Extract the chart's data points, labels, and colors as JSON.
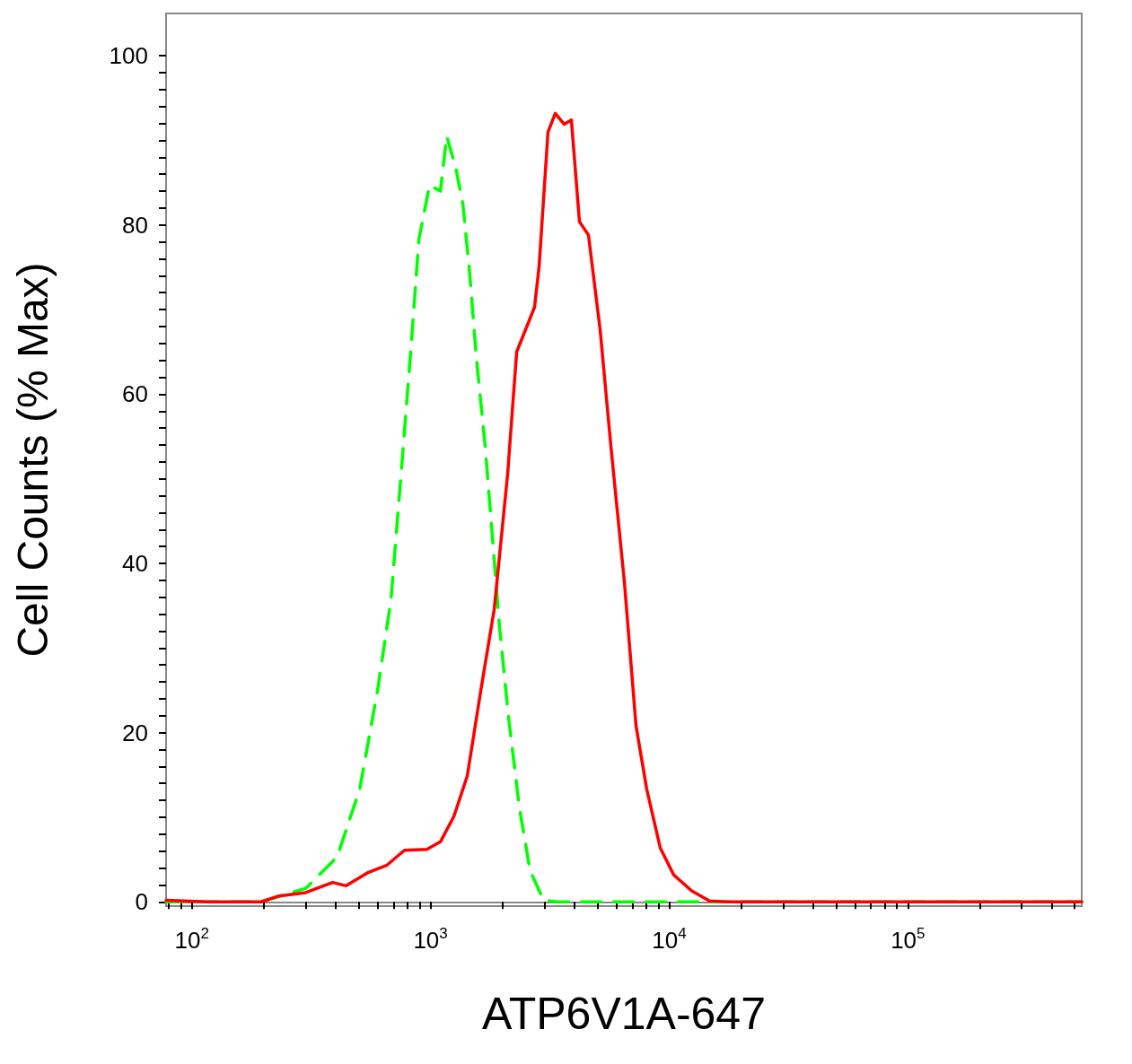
{
  "chart_data": {
    "type": "line",
    "xlabel": "ATP6V1A-647",
    "ylabel": "Cell Counts (% Max)",
    "log": "x",
    "marker": "none",
    "xlim": [
      78,
      535000
    ],
    "xticks": [
      {
        "value": 80,
        "label": null
      },
      {
        "value": 90,
        "label": null
      },
      {
        "value": 100,
        "label": "10$^{2}$"
      },
      {
        "value": 200,
        "label": null
      },
      {
        "value": 300,
        "label": null
      },
      {
        "value": 400,
        "label": null
      },
      {
        "value": 500,
        "label": null
      },
      {
        "value": 600,
        "label": null
      },
      {
        "value": 700,
        "label": null
      },
      {
        "value": 800,
        "label": null
      },
      {
        "value": 900,
        "label": null
      },
      {
        "value": 1000,
        "label": "10$^{3}$"
      },
      {
        "value": 2000,
        "label": null
      },
      {
        "value": 3000,
        "label": null
      },
      {
        "value": 4000,
        "label": null
      },
      {
        "value": 5000,
        "label": null
      },
      {
        "value": 6000,
        "label": null
      },
      {
        "value": 7000,
        "label": null
      },
      {
        "value": 8000,
        "label": null
      },
      {
        "value": 9000,
        "label": null
      },
      {
        "value": 10000,
        "label": "10$^{4}$"
      },
      {
        "value": 20000,
        "label": null
      },
      {
        "value": 30000,
        "label": null
      },
      {
        "value": 40000,
        "label": null
      },
      {
        "value": 50000,
        "label": null
      },
      {
        "value": 60000,
        "label": null
      },
      {
        "value": 70000,
        "label": null
      },
      {
        "value": 80000,
        "label": null
      },
      {
        "value": 90000,
        "label": null
      },
      {
        "value": 100000,
        "label": "10$^{5}$"
      },
      {
        "value": 200000,
        "label": null
      },
      {
        "value": 300000,
        "label": null
      },
      {
        "value": 400000,
        "label": null
      },
      {
        "value": 500000,
        "label": null
      }
    ],
    "ylim": [
      -0.5,
      105
    ],
    "yticks": [
      0,
      {
        "value": 2,
        "label": null
      },
      {
        "value": 4,
        "label": null
      },
      {
        "value": 6,
        "label": null
      },
      {
        "value": 8,
        "label": null
      },
      {
        "value": 10,
        "label": null
      },
      {
        "value": 12,
        "label": null
      },
      {
        "value": 14,
        "label": null
      },
      {
        "value": 16,
        "label": null
      },
      {
        "value": 18,
        "label": null
      },
      20,
      {
        "value": 22,
        "label": null
      },
      {
        "value": 24,
        "label": null
      },
      {
        "value": 26,
        "label": null
      },
      {
        "value": 28,
        "label": null
      },
      {
        "value": 30,
        "label": null
      },
      {
        "value": 32,
        "label": null
      },
      {
        "value": 34,
        "label": null
      },
      {
        "value": 36,
        "label": null
      },
      {
        "value": 38,
        "label": null
      },
      40,
      {
        "value": 42,
        "label": null
      },
      {
        "value": 44,
        "label": null
      },
      {
        "value": 46,
        "label": null
      },
      {
        "value": 48,
        "label": null
      },
      {
        "value": 50,
        "label": null
      },
      {
        "value": 52,
        "label": null
      },
      {
        "value": 54,
        "label": null
      },
      {
        "value": 56,
        "label": null
      },
      {
        "value": 58,
        "label": null
      },
      60,
      {
        "value": 62,
        "label": null
      },
      {
        "value": 64,
        "label": null
      },
      {
        "value": 66,
        "label": null
      },
      {
        "value": 68,
        "label": null
      },
      {
        "value": 70,
        "label": null
      },
      {
        "value": 72,
        "label": null
      },
      {
        "value": 74,
        "label": null
      },
      {
        "value": 76,
        "label": null
      },
      {
        "value": 78,
        "label": null
      },
      80,
      {
        "value": 82,
        "label": null
      },
      {
        "value": 84,
        "label": null
      },
      {
        "value": 86,
        "label": null
      },
      {
        "value": 88,
        "label": null
      },
      {
        "value": 90,
        "label": null
      },
      {
        "value": 92,
        "label": null
      },
      {
        "value": 94,
        "label": null
      },
      {
        "value": 96,
        "label": null
      },
      {
        "value": 98,
        "label": null
      },
      100
    ],
    "series": [
      {
        "color": "#00ff00",
        "line_style": "dashed",
        "x": [
          78,
          195,
          300,
          406,
          505,
          600,
          683,
          758,
          834,
          894,
          991,
          1100,
          1169,
          1275,
          1366,
          1452,
          1556,
          1695,
          1817,
          1946,
          2123,
          2355,
          2612,
          2976,
          3390,
          535000
        ],
        "values": [
          0,
          0,
          1.6,
          5.3,
          13.3,
          25,
          35.7,
          51.6,
          66.6,
          78.3,
          84.7,
          84,
          90.5,
          86.8,
          82.5,
          75,
          64.4,
          53.8,
          43.1,
          32.5,
          21.8,
          11.2,
          3.7,
          0.2,
          0,
          0
        ]
      },
      {
        "color": "#ff0000",
        "line_style": "solid",
        "x": [
          78,
          116,
          195,
          232,
          300,
          389,
          443,
          550,
          654,
          778,
          966,
          1100,
          1253,
          1426,
          1625,
          1849,
          2105,
          2296,
          2729,
          2851,
          3106,
          3332,
          3634,
          3893,
          4207,
          4590,
          5137,
          5700,
          6490,
          7262,
          8054,
          9169,
          10440,
          12420,
          14750,
          17540,
          535000
        ],
        "values": [
          0.2,
          0,
          0,
          0.7,
          1.1,
          2.3,
          1.9,
          3.5,
          4.3,
          6.1,
          6.2,
          7.1,
          10.1,
          14.9,
          25,
          34.6,
          50.6,
          65,
          70.3,
          75.1,
          91,
          93.2,
          91.9,
          92.4,
          80.4,
          78.8,
          67.6,
          53.8,
          37.8,
          20.8,
          13.3,
          6.4,
          3.2,
          1.3,
          0.1,
          0,
          0
        ]
      }
    ]
  }
}
